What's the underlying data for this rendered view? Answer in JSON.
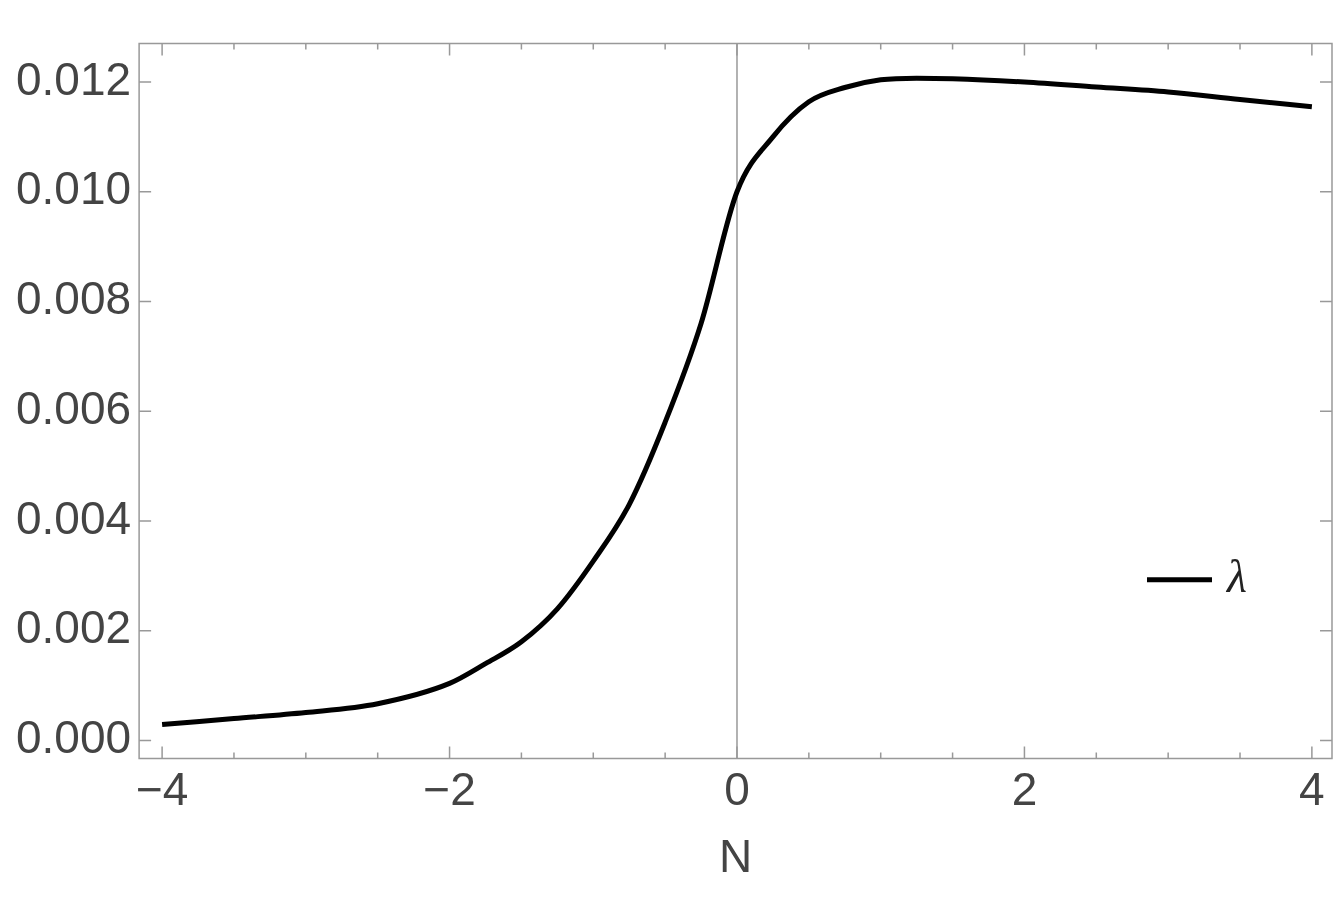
{
  "chart_data": {
    "type": "line",
    "xlabel": "N",
    "x": [
      -4,
      -3.5,
      -3,
      -2.5,
      -2,
      -1.75,
      -1.5,
      -1.25,
      -1,
      -0.75,
      -0.5,
      -0.25,
      0,
      0.25,
      0.5,
      0.75,
      1,
      1.25,
      1.5,
      2,
      2.5,
      3,
      3.5,
      4
    ],
    "series": [
      {
        "name": "λ",
        "color": "#000000",
        "values": [
          0.00029,
          0.0004,
          0.00051,
          0.00067,
          0.00104,
          0.0014,
          0.0018,
          0.0024,
          0.00327,
          0.0043,
          0.0058,
          0.0076,
          0.01,
          0.011,
          0.01164,
          0.0119,
          0.01204,
          0.01207,
          0.01206,
          0.012,
          0.01191,
          0.01182,
          0.01168,
          0.01155
        ]
      }
    ],
    "xlim": [
      -4.16,
      4.14
    ],
    "ylim": [
      -0.00033,
      0.0127
    ],
    "xticks": [
      {
        "value": -4,
        "label": "−4"
      },
      {
        "value": -3.5,
        "label": null
      },
      {
        "value": -3,
        "label": null
      },
      {
        "value": -2.5,
        "label": null
      },
      {
        "value": -2,
        "label": "−2"
      },
      {
        "value": -1.5,
        "label": null
      },
      {
        "value": -1,
        "label": null
      },
      {
        "value": -0.5,
        "label": null
      },
      0,
      {
        "value": 0.5,
        "label": null
      },
      {
        "value": 1,
        "label": null
      },
      {
        "value": 1.5,
        "label": null
      },
      2,
      {
        "value": 2.5,
        "label": null
      },
      {
        "value": 3,
        "label": null
      },
      {
        "value": 3.5,
        "label": null
      },
      4
    ],
    "yticks": [
      {
        "value": 0,
        "label": "0.000"
      },
      {
        "value": 0.002,
        "label": "0.002"
      },
      {
        "value": 0.004,
        "label": "0.004"
      },
      {
        "value": 0.006,
        "label": "0.006"
      },
      {
        "value": 0.008,
        "label": "0.008"
      },
      {
        "value": 0.01,
        "label": "0.010"
      },
      {
        "value": 0.012,
        "label": "0.012"
      }
    ],
    "ref_lines": [
      {
        "axis": "x",
        "value": 0,
        "color": "#999999"
      }
    ],
    "grid": false,
    "legend": "right",
    "marker": "none",
    "line_style": "solid"
  }
}
